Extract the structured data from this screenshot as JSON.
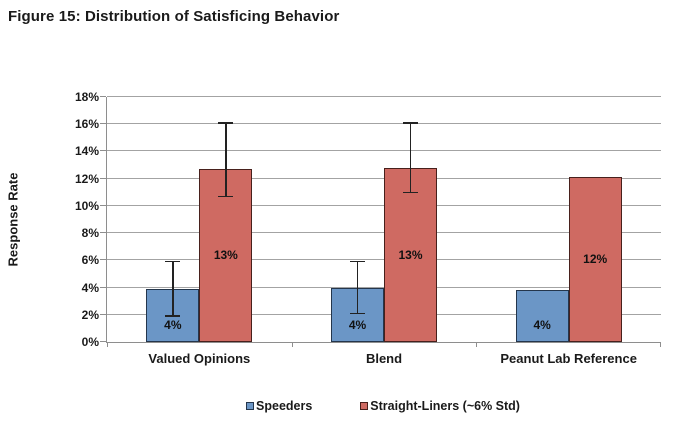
{
  "figure": {
    "title": "Figure 15: Distribution of Satisficing Behavior"
  },
  "chart_data": {
    "type": "bar",
    "title": "Figure 15: Distribution of Satisficing Behavior",
    "ylabel": "Response Rate",
    "xlabel": "",
    "ylim": [
      0,
      18
    ],
    "ytick_step": 2,
    "yticks": [
      "0%",
      "2%",
      "4%",
      "6%",
      "8%",
      "10%",
      "12%",
      "14%",
      "16%",
      "18%"
    ],
    "grid": true,
    "legend_position": "bottom",
    "categories": [
      "Valued Opinions",
      "Blend",
      "Peanut Lab Reference"
    ],
    "series": [
      {
        "name": "Speeders",
        "color": "#6b96c6",
        "border_color": "#24364c",
        "values": [
          3.9,
          4.0,
          3.8
        ],
        "bar_labels": [
          "4%",
          "4%",
          "4%"
        ],
        "error_low": [
          1.9,
          2.1,
          null
        ],
        "error_high": [
          5.9,
          5.9,
          null
        ]
      },
      {
        "name": "Straight-Liners (~6% Std)",
        "color": "#cf6a62",
        "border_color": "#47201c",
        "values": [
          12.7,
          12.8,
          12.1
        ],
        "bar_labels": [
          "13%",
          "13%",
          "12%"
        ],
        "error_low": [
          10.7,
          11.0,
          null
        ],
        "error_high": [
          16.1,
          16.1,
          null
        ]
      }
    ]
  }
}
